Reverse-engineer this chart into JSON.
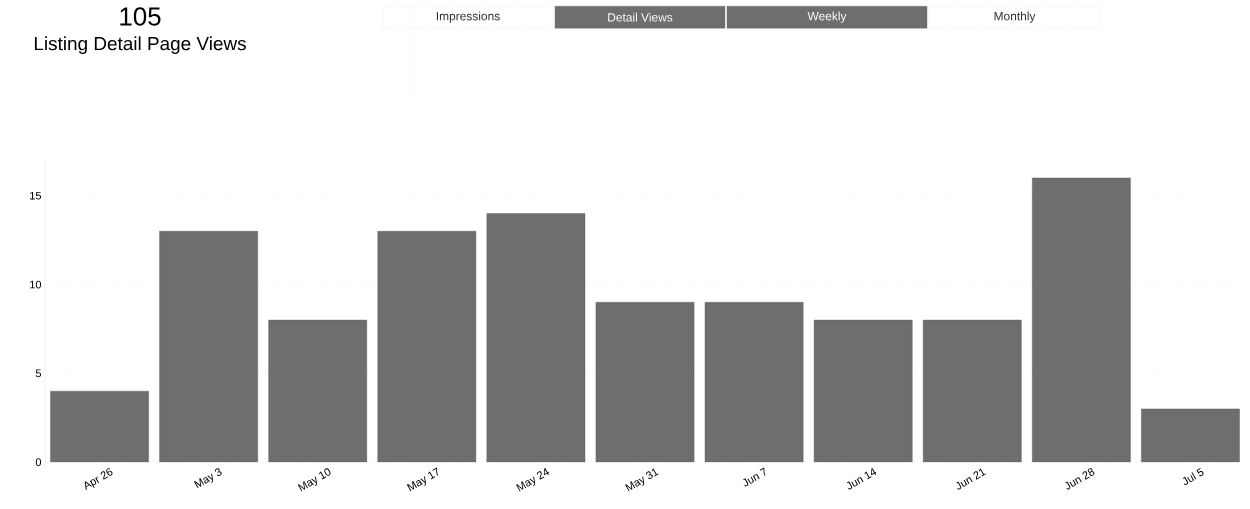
{
  "chart_data": {
    "type": "bar",
    "title": "105",
    "subtitle": "Listing Detail Page Views",
    "annotations": [
      "Impressions",
      "Detail Views",
      "Weekly",
      "Monthly"
    ],
    "categories": [
      "Apr 26",
      "May 3",
      "May 10",
      "May 17",
      "May 24",
      "May 31",
      "Jun 7",
      "Jun 14",
      "Jun 21",
      "Jun 28",
      "Jul 5"
    ],
    "values": [
      4,
      13,
      8,
      13,
      14,
      9,
      9,
      8,
      8,
      16,
      3
    ],
    "color": "#6e6e6e",
    "ylim": [
      0,
      17
    ],
    "yticks": [
      0,
      5,
      10,
      15
    ],
    "grid": "y"
  }
}
